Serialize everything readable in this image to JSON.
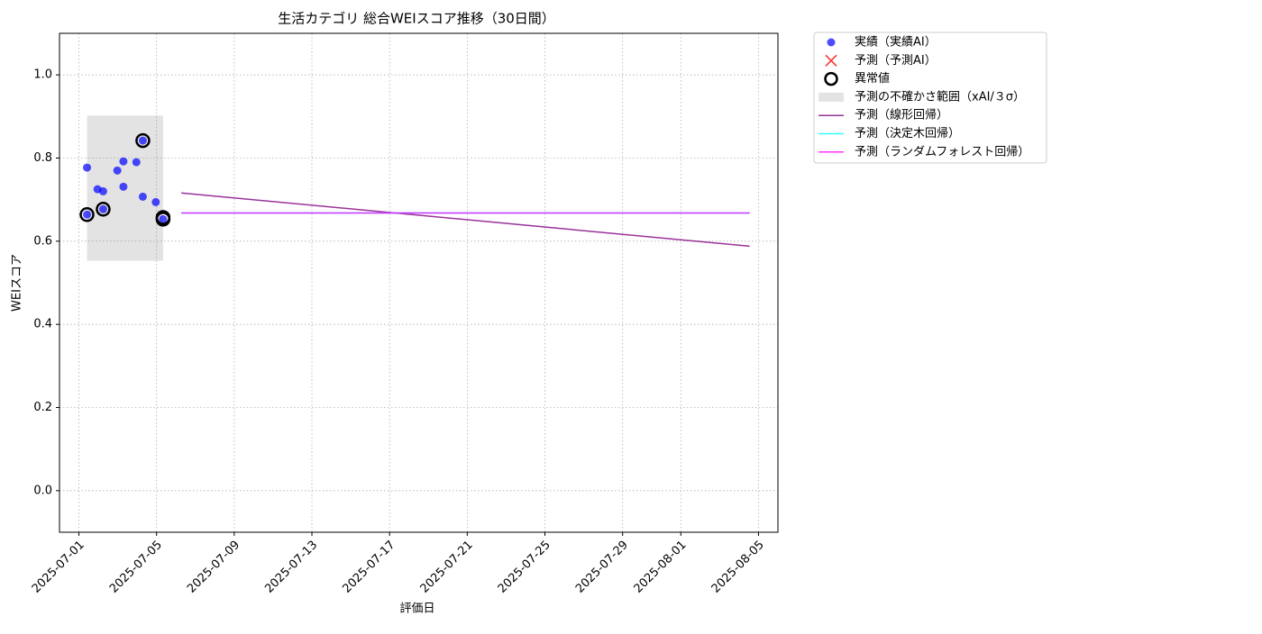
{
  "chart_data": {
    "type": "scatter",
    "title": "生活カテゴリ 総合WEIスコア推移（30日間）",
    "x_label": "評価日",
    "y_label": "WEIスコア",
    "xlim": [
      "2025-06-30",
      "2025-08-06"
    ],
    "xticks": [
      "2025-07-01",
      "2025-07-05",
      "2025-07-09",
      "2025-07-13",
      "2025-07-17",
      "2025-07-21",
      "2025-07-25",
      "2025-07-29",
      "2025-08-01",
      "2025-08-05"
    ],
    "ylim": [
      -0.1,
      1.1
    ],
    "yticks": [
      {
        "value": 0,
        "label": "0.0"
      },
      0.2,
      0.4,
      0.6,
      0.8,
      {
        "value": 1,
        "label": "1.0"
      }
    ],
    "grid": true,
    "legend": "outside upper right",
    "series": [
      {
        "name": "実績（実績AI）",
        "kind": "points",
        "color": "#0000ff",
        "x": [
          "2025-07-01T10:00",
          "2025-07-01T10:00",
          "2025-07-01T23:00",
          "2025-07-02T06:00",
          "2025-07-02T06:00",
          "2025-07-02T23:30",
          "2025-07-03T07:00",
          "2025-07-03T07:00",
          "2025-07-03T23:00",
          "2025-07-04T07:00",
          "2025-07-04T07:00",
          "2025-07-04T23:00",
          "2025-07-05T08:00"
        ],
        "values": [
          0.777,
          0.664,
          0.725,
          0.72,
          0.677,
          0.77,
          0.792,
          0.731,
          0.79,
          0.842,
          0.707,
          0.694,
          0.653
        ]
      },
      {
        "name": "予測（予測AI）",
        "kind": "crosses",
        "color": "#ff0000",
        "x": [],
        "values": []
      },
      {
        "name": "異常値",
        "kind": "rings",
        "color": "#000000",
        "x": [
          "2025-07-01T10:00",
          "2025-07-02T06:00",
          "2025-07-04T07:00",
          "2025-07-05T08:00",
          "2025-07-05T08:00"
        ],
        "values": [
          0.664,
          0.677,
          0.842,
          0.657,
          0.653
        ]
      },
      {
        "name": "予測の不確かさ範囲（xAI/３σ）",
        "kind": "band",
        "color": "#808080",
        "x": [
          "2025-07-01T10:00",
          "2025-07-05T08:00"
        ],
        "lower": [
          0.553,
          0.553
        ],
        "upper": [
          0.902,
          0.902
        ]
      },
      {
        "name": "予測（線形回帰）",
        "kind": "line",
        "color": "#800080",
        "x": [
          "2025-07-06T06:30",
          "2025-08-04T13:00"
        ],
        "values": [
          0.716,
          0.588
        ]
      },
      {
        "name": "予測（決定木回帰）",
        "kind": "line",
        "color": "#00ffff",
        "x": [
          "2025-07-06T06:30",
          "2025-08-04T13:00"
        ],
        "values": [
          0.668,
          0.668
        ]
      },
      {
        "name": "予測（ランダムフォレスト回帰）",
        "kind": "line",
        "color": "#ff00ff",
        "x": [
          "2025-07-06T06:30",
          "2025-08-04T13:00"
        ],
        "values": [
          0.668,
          0.668
        ]
      }
    ]
  }
}
